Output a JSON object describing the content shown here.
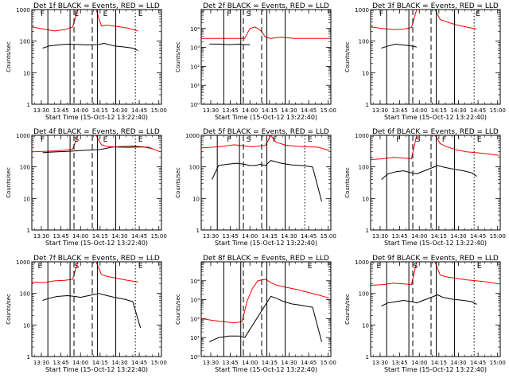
{
  "page": {
    "background": "#ffffff",
    "line_color": "#000000",
    "events_color": "#000000",
    "lld_color": "#ff0000"
  },
  "shared": {
    "xlabel": "Start Time (15-Oct-12 13:22:40)",
    "ylabel": "Counts/sec",
    "xtick_labels": [
      "13:30",
      "13:45",
      "14:00",
      "14:15",
      "14:30",
      "14:45",
      "15:00"
    ],
    "xtick_minutes": [
      30,
      45,
      60,
      75,
      90,
      105,
      120
    ],
    "xlim_minutes": [
      22.7,
      122
    ]
  },
  "chart_data": [
    {
      "type": "line",
      "detector": "1f",
      "title": "Det 1f BLACK = Events, RED = LLD",
      "ylim": [
        1,
        1000
      ],
      "yscale": "log",
      "ytick_labels": [
        "1",
        "10",
        "100",
        "1000"
      ],
      "series": [
        {
          "name": "Events",
          "color": "#000000",
          "x": [
            31,
            36,
            42,
            50,
            58,
            66,
            74,
            78,
            86,
            94,
            100,
            104
          ],
          "y": [
            60,
            70,
            75,
            80,
            78,
            76,
            78,
            85,
            70,
            65,
            60,
            50
          ]
        },
        {
          "name": "LLD",
          "color": "#ff0000",
          "x": [
            23,
            32,
            40,
            48,
            54,
            58,
            62,
            66,
            72,
            76,
            80,
            88,
            96,
            104
          ],
          "y": [
            280,
            240,
            210,
            230,
            280,
            1000,
            1000,
            1000,
            1000,
            300,
            320,
            290,
            260,
            210
          ]
        }
      ],
      "solid_markers": [
        35,
        52,
        73,
        87
      ],
      "dashed_markers": [
        55,
        69
      ],
      "dotted_markers": [
        102
      ],
      "interval_labels": [
        {
          "text": "F",
          "x": 31
        },
        {
          "text": "E",
          "x": 57
        },
        {
          "text": "E",
          "x": 79
        },
        {
          "text": "E",
          "x": 106
        }
      ]
    },
    {
      "type": "line",
      "detector": "2f",
      "title": "Det 2f BLACK = Events, RED = LLD",
      "ylim": [
        1,
        100000
      ],
      "yscale": "log",
      "ytick_labels": [
        "10⁰",
        "10¹",
        "10²",
        "10³",
        "10⁴"
      ],
      "series": [
        {
          "name": "Events",
          "color": "#000000",
          "x": [
            29,
            36,
            44,
            52,
            56,
            60
          ],
          "y": [
            1500,
            1500,
            1400,
            1500,
            1400,
            1400
          ]
        },
        {
          "name": "LLD",
          "color": "#ff0000",
          "x": [
            23,
            34,
            44,
            52,
            56,
            60,
            64,
            68,
            72,
            76,
            84,
            94,
            104,
            114,
            121
          ],
          "y": [
            3000,
            3000,
            3000,
            3000,
            3000,
            10000,
            12000,
            8000,
            3500,
            3000,
            3500,
            3000,
            3000,
            3000,
            3000
          ]
        }
      ],
      "solid_markers": [
        40,
        53,
        73,
        87
      ],
      "dashed_markers": [
        55,
        69
      ],
      "dotted_markers": [],
      "interval_labels": [
        {
          "text": "F",
          "x": 44
        },
        {
          "text": "S",
          "x": 59
        }
      ]
    },
    {
      "type": "line",
      "detector": "3f",
      "title": "Det 3f BLACK = Events, RED = LLD",
      "ylim": [
        1,
        1000
      ],
      "yscale": "log",
      "ytick_labels": [
        "1",
        "10",
        "100",
        "1000"
      ],
      "series": [
        {
          "name": "Events",
          "color": "#000000",
          "x": [
            31,
            36,
            42,
            48,
            54,
            58
          ],
          "y": [
            60,
            70,
            80,
            75,
            70,
            65
          ]
        },
        {
          "name": "LLD",
          "color": "#ff0000",
          "x": [
            23,
            32,
            40,
            48,
            54,
            58,
            62,
            66,
            72,
            76,
            80,
            88,
            96,
            104
          ],
          "y": [
            280,
            250,
            230,
            240,
            270,
            1000,
            1000,
            1000,
            1000,
            480,
            420,
            330,
            280,
            240
          ]
        }
      ],
      "solid_markers": [
        35,
        52,
        73,
        87
      ],
      "dashed_markers": [
        55,
        69
      ],
      "dotted_markers": [
        102
      ],
      "interval_labels": [
        {
          "text": "F",
          "x": 31
        },
        {
          "text": "E",
          "x": 105
        }
      ]
    },
    {
      "type": "line",
      "detector": "4f",
      "title": "Det 4f BLACK = Events, RED = LLD",
      "ylim": [
        1,
        1000
      ],
      "yscale": "log",
      "ytick_labels": [
        "1",
        "10",
        "100",
        "1000"
      ],
      "series": [
        {
          "name": "Events",
          "color": "#000000",
          "x": [
            31,
            36,
            42,
            50,
            56,
            60,
            66,
            72,
            76,
            84,
            92,
            100,
            108,
            115
          ],
          "y": [
            280,
            290,
            300,
            310,
            320,
            330,
            340,
            350,
            360,
            420,
            440,
            450,
            430,
            380
          ]
        },
        {
          "name": "LLD",
          "color": "#ff0000",
          "x": [
            23,
            32,
            40,
            48,
            54,
            58,
            62,
            66,
            72,
            76,
            80,
            88,
            96,
            104,
            112,
            121
          ],
          "y": [
            300,
            310,
            320,
            340,
            360,
            1000,
            1000,
            1000,
            1000,
            500,
            450,
            420,
            410,
            420,
            420,
            300
          ]
        }
      ],
      "solid_markers": [
        35,
        52,
        73,
        87
      ],
      "dashed_markers": [
        55,
        69
      ],
      "dotted_markers": [
        102
      ],
      "interval_labels": [
        {
          "text": "F",
          "x": 31
        },
        {
          "text": "S",
          "x": 57
        },
        {
          "text": "E",
          "x": 79
        },
        {
          "text": "E",
          "x": 106
        }
      ]
    },
    {
      "type": "line",
      "detector": "5f",
      "title": "Det 5f BLACK = Events, RED = LLD",
      "ylim": [
        1,
        1000
      ],
      "yscale": "log",
      "ytick_labels": [
        "1",
        "10",
        "100",
        "1000"
      ],
      "series": [
        {
          "name": "Events",
          "color": "#000000",
          "x": [
            31,
            36,
            42,
            50,
            56,
            60,
            64,
            68,
            72,
            76,
            84,
            92,
            100,
            108,
            115
          ],
          "y": [
            40,
            110,
            120,
            130,
            120,
            110,
            110,
            120,
            110,
            160,
            130,
            115,
            110,
            100,
            8
          ]
        },
        {
          "name": "LLD",
          "color": "#ff0000",
          "x": [
            23,
            32,
            40,
            48,
            54,
            58,
            62,
            66,
            72,
            76,
            80,
            88,
            96,
            104,
            112,
            121
          ],
          "y": [
            400,
            420,
            450,
            500,
            470,
            450,
            430,
            450,
            480,
            1000,
            600,
            480,
            450,
            430,
            420,
            330
          ]
        }
      ],
      "solid_markers": [
        35,
        52,
        73,
        87
      ],
      "dashed_markers": [
        55,
        69
      ],
      "dotted_markers": [
        102
      ],
      "interval_labels": [
        {
          "text": "F",
          "x": 44
        },
        {
          "text": "S",
          "x": 59
        },
        {
          "text": "F",
          "x": 79
        },
        {
          "text": "E",
          "x": 106
        }
      ]
    },
    {
      "type": "line",
      "detector": "6f",
      "title": "Det 6f BLACK = Events, RED = LLD",
      "ylim": [
        1,
        1000
      ],
      "yscale": "log",
      "ytick_labels": [
        "1",
        "10",
        "100",
        "1000"
      ],
      "series": [
        {
          "name": "Events",
          "color": "#000000",
          "x": [
            31,
            36,
            42,
            48,
            54,
            58,
            74,
            78,
            86,
            94,
            100,
            104
          ],
          "y": [
            40,
            60,
            70,
            75,
            65,
            60,
            110,
            100,
            85,
            75,
            65,
            50
          ]
        },
        {
          "name": "LLD",
          "color": "#ff0000",
          "x": [
            23,
            32,
            40,
            48,
            54,
            58,
            62,
            66,
            72,
            76,
            80,
            88,
            96,
            104,
            112,
            121
          ],
          "y": [
            170,
            180,
            200,
            190,
            180,
            1000,
            1000,
            1000,
            1000,
            550,
            450,
            350,
            300,
            280,
            260,
            230
          ]
        }
      ],
      "solid_markers": [
        35,
        52,
        73,
        87
      ],
      "dashed_markers": [
        55,
        69
      ],
      "dotted_markers": [
        102
      ],
      "interval_labels": [
        {
          "text": "F",
          "x": 44
        },
        {
          "text": "S",
          "x": 59
        },
        {
          "text": "F",
          "x": 79
        },
        {
          "text": "E",
          "x": 106
        }
      ]
    },
    {
      "type": "line",
      "detector": "7f",
      "title": "Det 7f BLACK = Events, RED = LLD",
      "ylim": [
        1,
        1000
      ],
      "yscale": "log",
      "ytick_labels": [
        "1",
        "10",
        "100",
        "1000"
      ],
      "series": [
        {
          "name": "Events",
          "color": "#000000",
          "x": [
            31,
            36,
            42,
            50,
            56,
            60,
            74,
            78,
            86,
            94,
            100,
            106
          ],
          "y": [
            60,
            70,
            80,
            85,
            80,
            75,
            100,
            90,
            75,
            65,
            55,
            8
          ]
        },
        {
          "name": "LLD",
          "color": "#ff0000",
          "x": [
            23,
            32,
            40,
            48,
            54,
            58,
            62,
            66,
            72,
            76,
            80,
            88,
            96,
            104
          ],
          "y": [
            230,
            220,
            250,
            260,
            280,
            1000,
            1000,
            1000,
            1000,
            400,
            350,
            300,
            260,
            230
          ]
        }
      ],
      "solid_markers": [
        35,
        52,
        73,
        87
      ],
      "dashed_markers": [
        55,
        69
      ],
      "dotted_markers": [
        102
      ],
      "interval_labels": [
        {
          "text": "E",
          "x": 29
        },
        {
          "text": "S",
          "x": 57
        },
        {
          "text": "E",
          "x": 106
        }
      ]
    },
    {
      "type": "line",
      "detector": "8f",
      "title": "Det 8f BLACK = Events, RED = LLD",
      "ylim": [
        1,
        100000
      ],
      "yscale": "log",
      "ytick_labels": [
        "10⁰",
        "10¹",
        "10²",
        "10³",
        "10⁴"
      ],
      "series": [
        {
          "name": "Events",
          "color": "#000000",
          "x": [
            29,
            36,
            44,
            52,
            56,
            76,
            80,
            86,
            92,
            100,
            108,
            115
          ],
          "y": [
            6,
            10,
            12,
            12,
            10,
            1500,
            1200,
            800,
            600,
            500,
            400,
            6
          ]
        },
        {
          "name": "LLD",
          "color": "#ff0000",
          "x": [
            23,
            32,
            40,
            48,
            54,
            58,
            62,
            66,
            72,
            76,
            80,
            88,
            96,
            104,
            112,
            121
          ],
          "y": [
            100,
            80,
            70,
            60,
            70,
            900,
            4000,
            10000,
            12000,
            8000,
            6000,
            4500,
            3500,
            2500,
            1800,
            1200
          ]
        }
      ],
      "solid_markers": [
        40,
        53,
        73,
        87
      ],
      "dashed_markers": [
        55,
        69
      ],
      "dotted_markers": [],
      "interval_labels": [
        {
          "text": "E",
          "x": 106
        }
      ]
    },
    {
      "type": "line",
      "detector": "9f",
      "title": "Det 9f BLACK = Events, RED = LLD",
      "ylim": [
        1,
        1000
      ],
      "yscale": "log",
      "ytick_labels": [
        "1",
        "10",
        "100",
        "1000"
      ],
      "series": [
        {
          "name": "Events",
          "color": "#000000",
          "x": [
            31,
            36,
            42,
            48,
            54,
            58,
            74,
            78,
            86,
            94,
            100,
            104
          ],
          "y": [
            40,
            50,
            55,
            60,
            55,
            50,
            90,
            75,
            65,
            60,
            55,
            45
          ]
        },
        {
          "name": "LLD",
          "color": "#ff0000",
          "x": [
            23,
            32,
            40,
            48,
            54,
            58,
            62,
            66,
            72,
            76,
            80,
            88,
            96,
            104,
            112,
            121
          ],
          "y": [
            180,
            190,
            210,
            200,
            190,
            1000,
            1000,
            1000,
            1000,
            380,
            340,
            300,
            270,
            250,
            230,
            200
          ]
        }
      ],
      "solid_markers": [
        35,
        52,
        73,
        87
      ],
      "dashed_markers": [
        55,
        69
      ],
      "dotted_markers": [
        102
      ],
      "interval_labels": [
        {
          "text": "E",
          "x": 29
        },
        {
          "text": "S",
          "x": 57
        },
        {
          "text": "E",
          "x": 106
        }
      ]
    }
  ]
}
